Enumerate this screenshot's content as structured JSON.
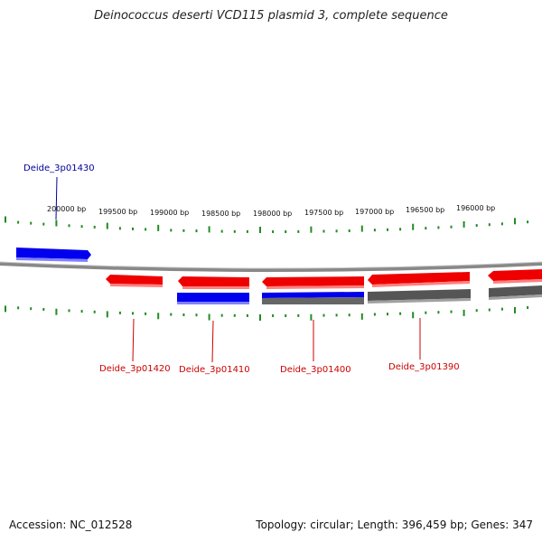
{
  "title": "Deinococcus deserti VCD115 plasmid 3, complete sequence",
  "footer": {
    "accession": "Accession: NC_012528",
    "topology": "Topology: circular; Length: 396,459 bp; Genes: 347"
  },
  "colors": {
    "forward_gene": "#ff0000",
    "reverse_gene": "#0000ff",
    "other_feature": "#555555",
    "backbone": "#888888",
    "ticks": "#228b22",
    "label_forward": "#cc0000",
    "label_reverse": "#000099"
  },
  "scale": {
    "ticks": [
      "200000 bp",
      "199500 bp",
      "199000 bp",
      "198500 bp",
      "198000 bp",
      "197500 bp",
      "197000 bp",
      "196500 bp",
      "196000 bp"
    ]
  },
  "gene_labels": [
    {
      "text": "Deide_3p01430",
      "strand": "reverse"
    },
    {
      "text": "Deide_3p01420",
      "strand": "forward"
    },
    {
      "text": "Deide_3p01410",
      "strand": "forward"
    },
    {
      "text": "Deide_3p01400",
      "strand": "forward"
    },
    {
      "text": "Deide_3p01390",
      "strand": "forward"
    }
  ]
}
